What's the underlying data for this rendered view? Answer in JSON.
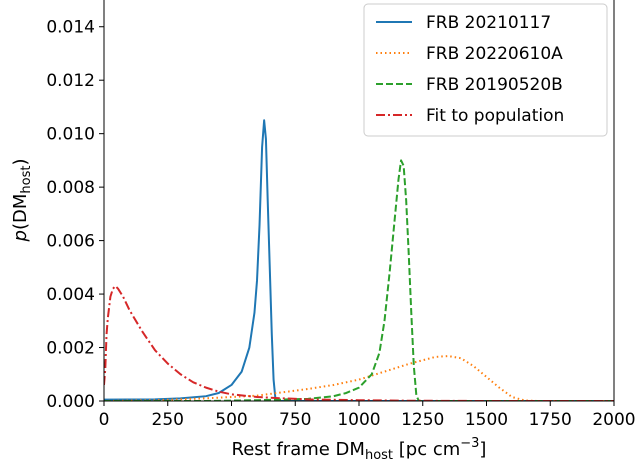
{
  "chart_data": {
    "type": "line",
    "xlabel": {
      "prefix": "Rest frame DM",
      "sub": "host",
      "suffix": " [pc cm",
      "sup": "−3",
      "close": "]"
    },
    "ylabel": {
      "prefix": "p",
      "open": "(DM",
      "sub": "host",
      "close": ")"
    },
    "xlim": [
      0,
      2000
    ],
    "ylim": [
      0,
      0.015
    ],
    "xticks": [
      0,
      250,
      500,
      750,
      1000,
      1250,
      1500,
      1750,
      2000
    ],
    "yticks": [
      0.0,
      0.002,
      0.004,
      0.006,
      0.008,
      0.01,
      0.012,
      0.014
    ],
    "ytick_labels": [
      "0.000",
      "0.002",
      "0.004",
      "0.006",
      "0.008",
      "0.010",
      "0.012",
      "0.014"
    ],
    "grid": false,
    "legend_position": "top-right",
    "series": [
      {
        "name": "FRB 20210117",
        "color": "#1f77b4",
        "style": "solid",
        "points": [
          [
            0,
            5e-05
          ],
          [
            200,
            6e-05
          ],
          [
            300,
            0.0001
          ],
          [
            400,
            0.00018
          ],
          [
            450,
            0.0003
          ],
          [
            500,
            0.0006
          ],
          [
            540,
            0.0011
          ],
          [
            570,
            0.002
          ],
          [
            590,
            0.0033
          ],
          [
            600,
            0.0045
          ],
          [
            610,
            0.0066
          ],
          [
            620,
            0.0095
          ],
          [
            628,
            0.0105
          ],
          [
            635,
            0.0098
          ],
          [
            642,
            0.0075
          ],
          [
            650,
            0.005
          ],
          [
            658,
            0.0025
          ],
          [
            665,
            0.0008
          ],
          [
            672,
            0.0001
          ],
          [
            680,
            0.0
          ],
          [
            2000,
            0.0
          ]
        ]
      },
      {
        "name": "FRB 20220610A",
        "color": "#ff7f0e",
        "style": "dotted",
        "points": [
          [
            0,
            0.0
          ],
          [
            200,
            3e-05
          ],
          [
            400,
            0.0001
          ],
          [
            600,
            0.0002
          ],
          [
            800,
            0.00045
          ],
          [
            900,
            0.0006
          ],
          [
            1000,
            0.0008
          ],
          [
            1100,
            0.0011
          ],
          [
            1200,
            0.0014
          ],
          [
            1300,
            0.00165
          ],
          [
            1350,
            0.00168
          ],
          [
            1400,
            0.0016
          ],
          [
            1450,
            0.0013
          ],
          [
            1500,
            0.0009
          ],
          [
            1550,
            0.0005
          ],
          [
            1600,
            0.00015
          ],
          [
            1650,
            2e-05
          ],
          [
            1700,
            0.0
          ],
          [
            2000,
            0.0
          ]
        ]
      },
      {
        "name": "FRB 20190520B",
        "color": "#2ca02c",
        "style": "dashed",
        "points": [
          [
            0,
            0.0
          ],
          [
            400,
            0.0
          ],
          [
            600,
            3e-05
          ],
          [
            800,
            8e-05
          ],
          [
            900,
            0.00018
          ],
          [
            950,
            0.0003
          ],
          [
            1000,
            0.0005
          ],
          [
            1050,
            0.001
          ],
          [
            1080,
            0.0018
          ],
          [
            1100,
            0.003
          ],
          [
            1120,
            0.0048
          ],
          [
            1140,
            0.0068
          ],
          [
            1155,
            0.0083
          ],
          [
            1165,
            0.009
          ],
          [
            1175,
            0.0088
          ],
          [
            1185,
            0.0075
          ],
          [
            1195,
            0.0055
          ],
          [
            1205,
            0.0033
          ],
          [
            1215,
            0.0013
          ],
          [
            1225,
            0.0002
          ],
          [
            1235,
            0.0
          ],
          [
            2000,
            0.0
          ]
        ]
      },
      {
        "name": "Fit to population",
        "color": "#d62728",
        "style": "dashdot",
        "points": [
          [
            0,
            0.0006
          ],
          [
            5,
            0.0012
          ],
          [
            10,
            0.0025
          ],
          [
            15,
            0.0031
          ],
          [
            25,
            0.0039
          ],
          [
            35,
            0.0042
          ],
          [
            45,
            0.0043
          ],
          [
            55,
            0.0042
          ],
          [
            75,
            0.0039
          ],
          [
            100,
            0.0034
          ],
          [
            150,
            0.0026
          ],
          [
            200,
            0.0019
          ],
          [
            250,
            0.0014
          ],
          [
            300,
            0.001
          ],
          [
            350,
            0.0007
          ],
          [
            400,
            0.0005
          ],
          [
            450,
            0.00035
          ],
          [
            500,
            0.00025
          ],
          [
            600,
            0.00015
          ],
          [
            700,
            0.0001
          ],
          [
            800,
            6e-05
          ],
          [
            1000,
            3e-05
          ],
          [
            1200,
            1e-05
          ],
          [
            1500,
            0.0
          ],
          [
            2000,
            0.0
          ]
        ]
      }
    ]
  }
}
